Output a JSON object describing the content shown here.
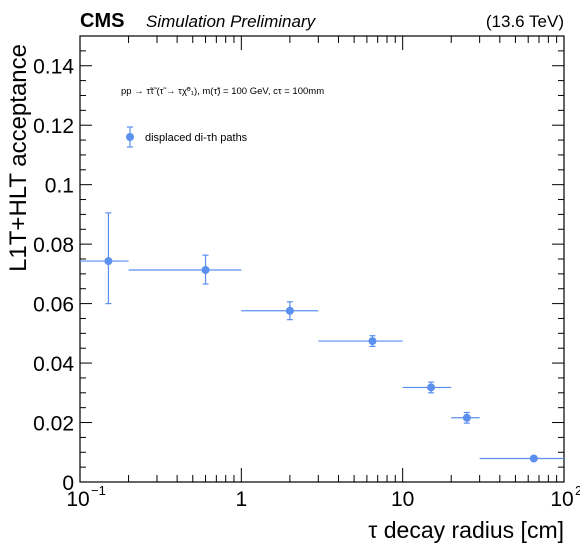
{
  "header": {
    "experiment": "CMS",
    "status": "Simulation Preliminary",
    "energy": "(13.6 TeV)"
  },
  "process_label": "pp → τ̃τ̃ (τ̃ → τχ̃⁰₁), m(τ̃) = 100 GeV, cτ = 100mm",
  "chart_data": {
    "type": "scatter",
    "title": "",
    "xlabel": "τ decay radius [cm]",
    "ylabel": "L1T+HLT acceptance",
    "xscale": "log",
    "xlim": [
      0.1,
      100
    ],
    "ylim": [
      0,
      0.15
    ],
    "x_ticks": [
      {
        "value": 0.1,
        "base": "10",
        "exp": "−1"
      },
      {
        "value": 1,
        "base": "1",
        "exp": ""
      },
      {
        "value": 10,
        "base": "10",
        "exp": ""
      },
      {
        "value": 100,
        "base": "10",
        "exp": "2"
      }
    ],
    "y_ticks": [
      0,
      0.02,
      0.04,
      0.06,
      0.08,
      0.1,
      0.12,
      0.14
    ],
    "y_tick_labels": [
      "0",
      "0.02",
      "0.04",
      "0.06",
      "0.08",
      "0.1",
      "0.12",
      "0.14"
    ],
    "legend_position": "top-left",
    "series": [
      {
        "name": "displaced di-τh paths",
        "color": "#5b8ff0",
        "points": [
          {
            "x": 0.15,
            "xlo": 0.1,
            "xhi": 0.2,
            "y": 0.0743,
            "yerr_lo": 0.0143,
            "yerr_hi": 0.0162
          },
          {
            "x": 0.6,
            "xlo": 0.2,
            "xhi": 1.0,
            "y": 0.0713,
            "yerr_lo": 0.0047,
            "yerr_hi": 0.005
          },
          {
            "x": 2.0,
            "xlo": 1.0,
            "xhi": 3.0,
            "y": 0.0576,
            "yerr_lo": 0.003,
            "yerr_hi": 0.003
          },
          {
            "x": 6.5,
            "xlo": 3.0,
            "xhi": 10.0,
            "y": 0.0474,
            "yerr_lo": 0.0018,
            "yerr_hi": 0.0018
          },
          {
            "x": 15.0,
            "xlo": 10.0,
            "xhi": 20.0,
            "y": 0.0318,
            "yerr_lo": 0.0018,
            "yerr_hi": 0.0018
          },
          {
            "x": 25.0,
            "xlo": 20.0,
            "xhi": 30.0,
            "y": 0.0216,
            "yerr_lo": 0.0018,
            "yerr_hi": 0.0018
          },
          {
            "x": 65.0,
            "xlo": 30.0,
            "xhi": 100.0,
            "y": 0.0079,
            "yerr_lo": 0.0005,
            "yerr_hi": 0.0005
          }
        ]
      }
    ]
  }
}
